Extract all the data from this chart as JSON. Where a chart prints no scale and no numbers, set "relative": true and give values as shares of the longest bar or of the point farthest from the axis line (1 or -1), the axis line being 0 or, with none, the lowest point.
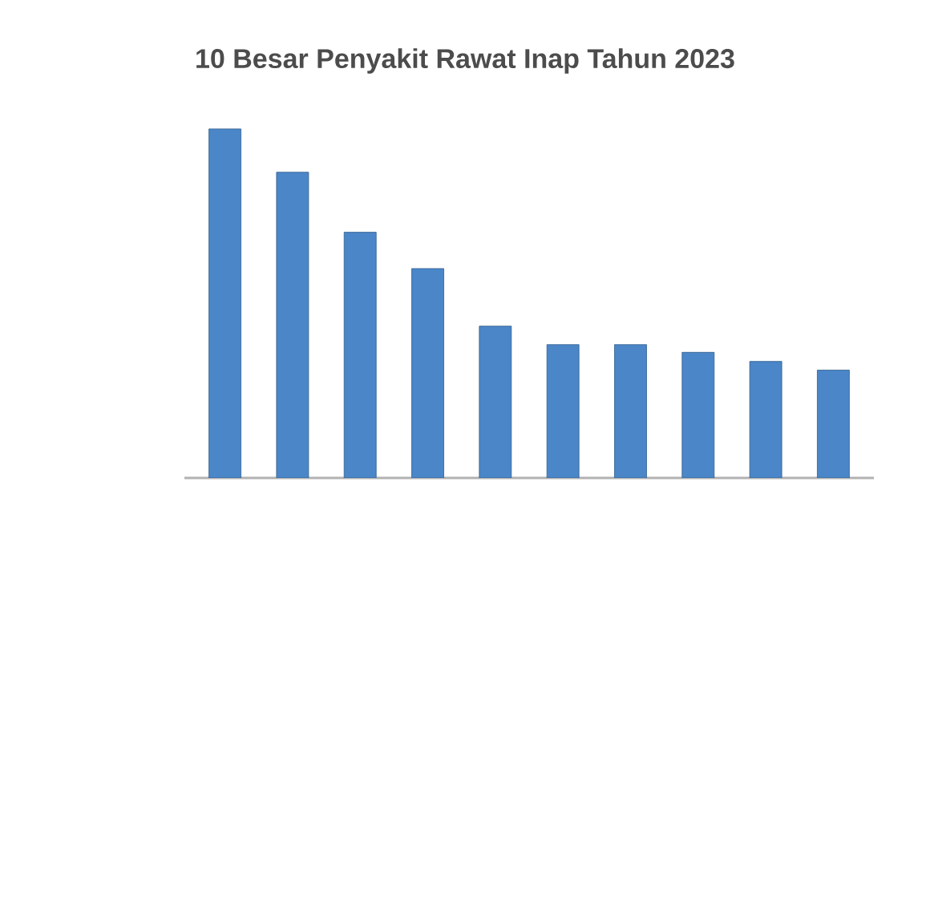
{
  "chart_data": {
    "type": "bar",
    "title": "10 Besar Penyakit Rawat Inap Tahun 2023",
    "categories": [
      null,
      null,
      null,
      null,
      null,
      null,
      null,
      null,
      null,
      null
    ],
    "values": [
      1,
      0.876,
      0.704,
      0.6,
      0.435,
      0.382,
      0.382,
      0.36,
      0.334,
      0.309
    ],
    "color": "#4a86c8",
    "relative": true
  }
}
